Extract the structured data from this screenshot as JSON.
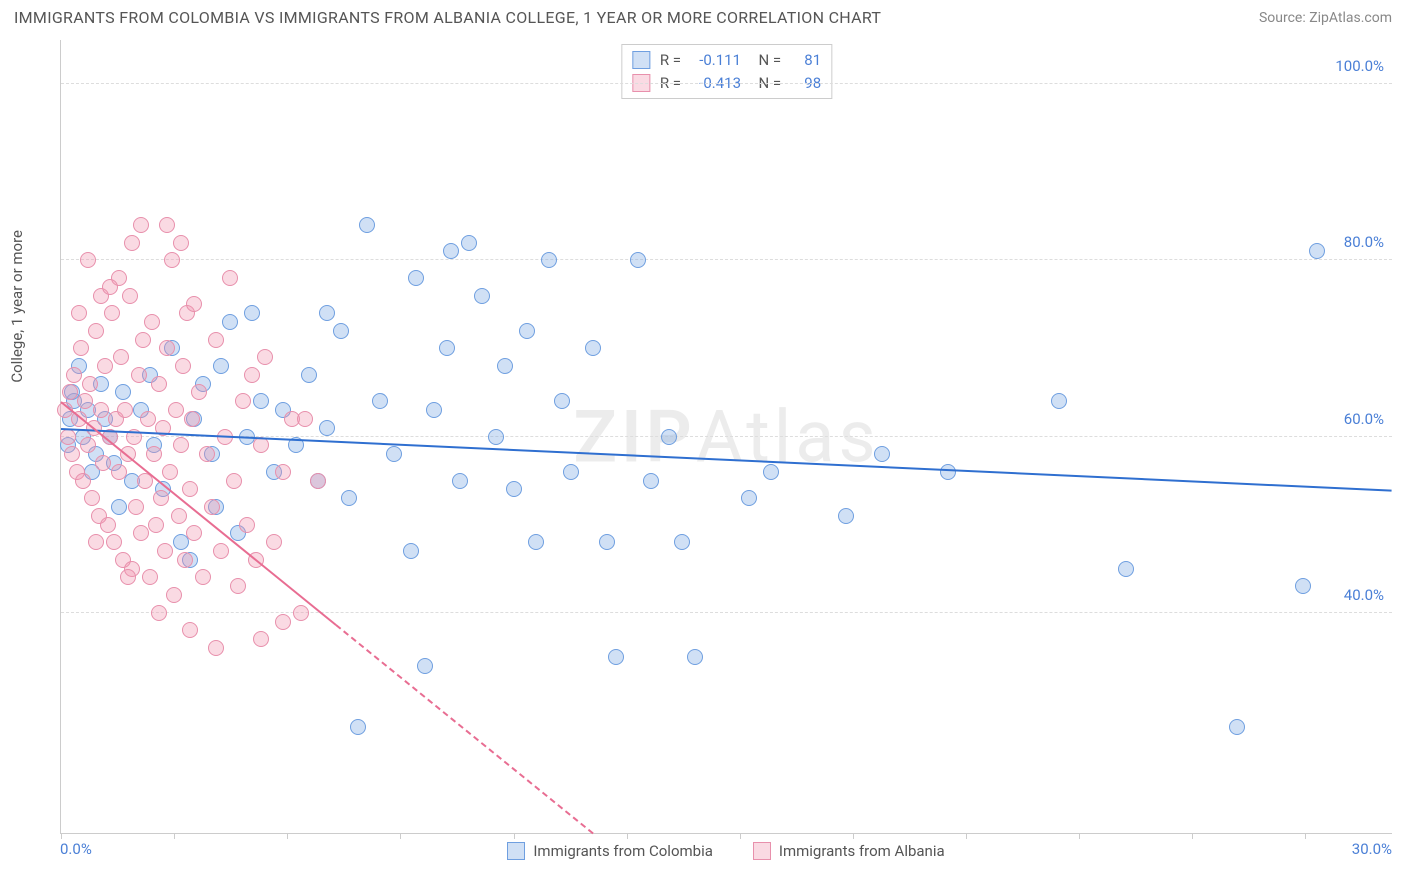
{
  "title": "IMMIGRANTS FROM COLOMBIA VS IMMIGRANTS FROM ALBANIA COLLEGE, 1 YEAR OR MORE CORRELATION CHART",
  "source": "Source: ZipAtlas.com",
  "ylabel": "College, 1 year or more",
  "watermark": "ZIPAtlas",
  "chart": {
    "type": "scatter",
    "xlim": [
      0,
      30
    ],
    "ylim": [
      15,
      105
    ],
    "xticks_pct": [
      0.0,
      8.5,
      17.0,
      25.5,
      34.0,
      42.5,
      51.0,
      59.5,
      68.0,
      76.5,
      85.0,
      93.5
    ],
    "xaxis_labels": {
      "left": "0.0%",
      "right": "30.0%"
    },
    "yticks": [
      {
        "v": 40,
        "label": "40.0%"
      },
      {
        "v": 60,
        "label": "60.0%"
      },
      {
        "v": 80,
        "label": "80.0%"
      },
      {
        "v": 100,
        "label": "100.0%"
      }
    ],
    "grid_color": "#dddddd",
    "axis_color": "#cccccc",
    "background_color": "#ffffff",
    "point_radius": 8,
    "legend_top": [
      {
        "swatch": "blue",
        "r": "-0.111",
        "n": "81"
      },
      {
        "swatch": "pink",
        "r": "-0.413",
        "n": "98"
      }
    ],
    "legend_bottom": [
      {
        "swatch": "blue",
        "label": "Immigrants from Colombia"
      },
      {
        "swatch": "pink",
        "label": "Immigrants from Albania"
      }
    ],
    "series": {
      "blue": {
        "fill": "rgba(120,165,225,0.35)",
        "stroke": "#6f9fe0",
        "line_color": "#2f6fd0",
        "regression": {
          "x1": 0,
          "y1": 61,
          "x2": 30,
          "y2": 54,
          "dashed_from_x": null
        },
        "points": [
          [
            0.3,
            64
          ],
          [
            0.5,
            60
          ],
          [
            0.6,
            63
          ],
          [
            0.8,
            58
          ],
          [
            0.9,
            66
          ],
          [
            1.0,
            62
          ],
          [
            1.1,
            60
          ],
          [
            1.2,
            57
          ],
          [
            1.4,
            65
          ],
          [
            1.6,
            55
          ],
          [
            1.8,
            63
          ],
          [
            2.0,
            67
          ],
          [
            2.1,
            59
          ],
          [
            2.3,
            54
          ],
          [
            2.5,
            70
          ],
          [
            2.7,
            48
          ],
          [
            3.0,
            62
          ],
          [
            3.2,
            66
          ],
          [
            3.4,
            58
          ],
          [
            3.6,
            68
          ],
          [
            3.8,
            73
          ],
          [
            4.0,
            49
          ],
          [
            4.2,
            60
          ],
          [
            4.5,
            64
          ],
          [
            4.8,
            56
          ],
          [
            5.0,
            63
          ],
          [
            5.3,
            59
          ],
          [
            5.6,
            67
          ],
          [
            5.8,
            55
          ],
          [
            6.0,
            61
          ],
          [
            6.3,
            72
          ],
          [
            6.5,
            53
          ],
          [
            6.7,
            27
          ],
          [
            6.9,
            84
          ],
          [
            7.2,
            64
          ],
          [
            7.5,
            58
          ],
          [
            7.9,
            47
          ],
          [
            8.2,
            34
          ],
          [
            8.4,
            63
          ],
          [
            8.7,
            70
          ],
          [
            8.8,
            81
          ],
          [
            9.0,
            55
          ],
          [
            9.5,
            76
          ],
          [
            9.8,
            60
          ],
          [
            10.0,
            68
          ],
          [
            10.2,
            54
          ],
          [
            10.5,
            72
          ],
          [
            10.7,
            48
          ],
          [
            11.0,
            80
          ],
          [
            11.3,
            64
          ],
          [
            11.5,
            56
          ],
          [
            12.0,
            70
          ],
          [
            12.3,
            48
          ],
          [
            12.5,
            35
          ],
          [
            13.0,
            80
          ],
          [
            13.3,
            55
          ],
          [
            13.7,
            60
          ],
          [
            14.0,
            48
          ],
          [
            14.3,
            35
          ],
          [
            15.5,
            53
          ],
          [
            16.0,
            56
          ],
          [
            17.7,
            51
          ],
          [
            22.5,
            64
          ],
          [
            24.0,
            45
          ],
          [
            26.5,
            27
          ],
          [
            28.0,
            43
          ],
          [
            28.3,
            81
          ],
          [
            20.0,
            56
          ],
          [
            18.5,
            58
          ],
          [
            9.2,
            82
          ],
          [
            8.0,
            78
          ],
          [
            6.0,
            74
          ],
          [
            4.3,
            74
          ],
          [
            3.5,
            52
          ],
          [
            2.9,
            46
          ],
          [
            1.3,
            52
          ],
          [
            0.7,
            56
          ],
          [
            0.4,
            68
          ],
          [
            0.2,
            62
          ],
          [
            0.15,
            59
          ],
          [
            0.25,
            65
          ]
        ]
      },
      "pink": {
        "fill": "rgba(240,150,175,0.35)",
        "stroke": "#e890ac",
        "line_color": "#e86d92",
        "regression": {
          "x1": 0,
          "y1": 64,
          "x2": 12,
          "y2": 15,
          "dashed_from_x": 6.2
        },
        "points": [
          [
            0.1,
            63
          ],
          [
            0.15,
            60
          ],
          [
            0.2,
            65
          ],
          [
            0.25,
            58
          ],
          [
            0.3,
            67
          ],
          [
            0.35,
            56
          ],
          [
            0.4,
            62
          ],
          [
            0.45,
            70
          ],
          [
            0.5,
            55
          ],
          [
            0.55,
            64
          ],
          [
            0.6,
            59
          ],
          [
            0.65,
            66
          ],
          [
            0.7,
            53
          ],
          [
            0.75,
            61
          ],
          [
            0.8,
            72
          ],
          [
            0.85,
            51
          ],
          [
            0.9,
            63
          ],
          [
            0.95,
            57
          ],
          [
            1.0,
            68
          ],
          [
            1.05,
            50
          ],
          [
            1.1,
            60
          ],
          [
            1.15,
            74
          ],
          [
            1.2,
            48
          ],
          [
            1.25,
            62
          ],
          [
            1.3,
            56
          ],
          [
            1.35,
            69
          ],
          [
            1.4,
            46
          ],
          [
            1.45,
            63
          ],
          [
            1.5,
            58
          ],
          [
            1.55,
            76
          ],
          [
            1.6,
            45
          ],
          [
            1.65,
            60
          ],
          [
            1.7,
            52
          ],
          [
            1.75,
            67
          ],
          [
            1.8,
            49
          ],
          [
            1.85,
            71
          ],
          [
            1.9,
            55
          ],
          [
            1.95,
            62
          ],
          [
            2.0,
            44
          ],
          [
            2.05,
            73
          ],
          [
            2.1,
            58
          ],
          [
            2.15,
            50
          ],
          [
            2.2,
            66
          ],
          [
            2.25,
            53
          ],
          [
            2.3,
            61
          ],
          [
            2.35,
            47
          ],
          [
            2.4,
            70
          ],
          [
            2.45,
            56
          ],
          [
            2.5,
            80
          ],
          [
            2.55,
            42
          ],
          [
            2.6,
            63
          ],
          [
            2.65,
            51
          ],
          [
            2.7,
            59
          ],
          [
            2.75,
            68
          ],
          [
            2.8,
            46
          ],
          [
            2.85,
            74
          ],
          [
            2.9,
            54
          ],
          [
            2.95,
            62
          ],
          [
            3.0,
            49
          ],
          [
            3.1,
            65
          ],
          [
            3.2,
            44
          ],
          [
            3.3,
            58
          ],
          [
            3.4,
            52
          ],
          [
            3.5,
            71
          ],
          [
            3.6,
            47
          ],
          [
            3.7,
            60
          ],
          [
            3.8,
            78
          ],
          [
            3.9,
            55
          ],
          [
            4.0,
            43
          ],
          [
            4.1,
            64
          ],
          [
            4.2,
            50
          ],
          [
            4.3,
            67
          ],
          [
            4.4,
            46
          ],
          [
            4.5,
            59
          ],
          [
            4.6,
            69
          ],
          [
            4.8,
            48
          ],
          [
            5.0,
            56
          ],
          [
            5.2,
            62
          ],
          [
            5.4,
            40
          ],
          [
            1.8,
            84
          ],
          [
            0.6,
            80
          ],
          [
            1.3,
            78
          ],
          [
            2.4,
            84
          ],
          [
            0.9,
            76
          ],
          [
            1.6,
            82
          ],
          [
            3.0,
            75
          ],
          [
            0.4,
            74
          ],
          [
            1.1,
            77
          ],
          [
            2.7,
            82
          ],
          [
            0.8,
            48
          ],
          [
            1.5,
            44
          ],
          [
            2.2,
            40
          ],
          [
            2.9,
            38
          ],
          [
            4.5,
            37
          ],
          [
            5.0,
            39
          ],
          [
            3.5,
            36
          ],
          [
            5.5,
            62
          ],
          [
            5.8,
            55
          ]
        ]
      }
    }
  }
}
